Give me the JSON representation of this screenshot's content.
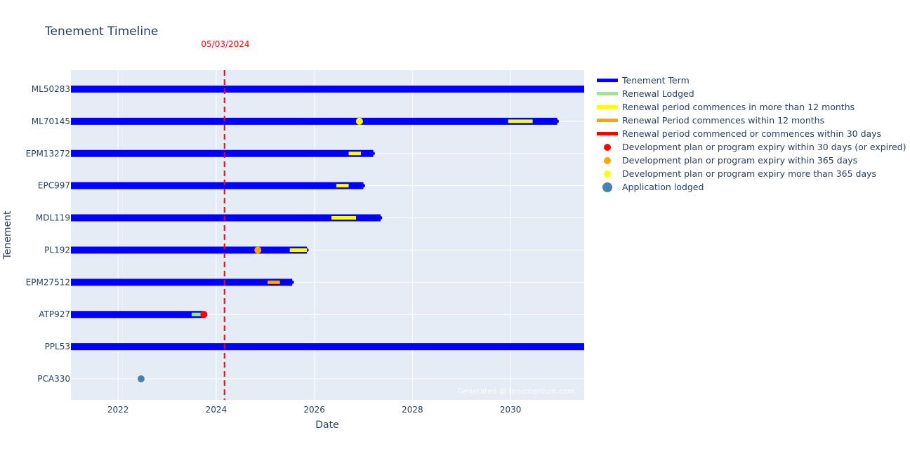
{
  "chart_data": {
    "type": "timeline",
    "title": "Tenement Timeline",
    "xlabel": "Date",
    "ylabel": "Tenement",
    "x_range": [
      2021.04,
      2031.5
    ],
    "x_ticks": [
      2022,
      2024,
      2026,
      2028,
      2030
    ],
    "x_tick_labels": [
      "2022",
      "2024",
      "2026",
      "2028",
      "2030"
    ],
    "grid": true,
    "legend_position": "right",
    "reference_line": {
      "date": "05/03/2024",
      "x": 2024.17,
      "color": "#ff0000",
      "label": "05/03/2024"
    },
    "watermark": "Generated @ tenementum.com",
    "categories": [
      "ML50283",
      "ML70145",
      "EPM13272",
      "EPC997",
      "MDL119",
      "PL192",
      "EPM27512",
      "ATP927",
      "PPL53",
      "PCA330"
    ],
    "legend": [
      {
        "name": "Tenement Term",
        "kind": "line",
        "color": "#0000ff"
      },
      {
        "name": "Renewal Lodged",
        "kind": "line",
        "color": "#90ee90"
      },
      {
        "name": "Renewal period commences in more than 12 months",
        "kind": "line",
        "color": "#ffff00"
      },
      {
        "name": "Renewal Period commences within 12 months",
        "kind": "line",
        "color": "#ffa500"
      },
      {
        "name": "Renewal period commenced or commences within 30 days",
        "kind": "line",
        "color": "#ff0000"
      },
      {
        "name": "Development plan or program expiry within 30 days (or expired)",
        "kind": "dot",
        "color": "#ff0000"
      },
      {
        "name": "Development plan or program expiry within 365 days",
        "kind": "dot",
        "color": "#ffa500"
      },
      {
        "name": "Development plan or program expiry more than 365 days",
        "kind": "dot",
        "color": "#ffff00"
      },
      {
        "name": "Application lodged",
        "kind": "bigdot",
        "color": "#4682b4"
      }
    ],
    "terms": [
      {
        "tenement": "ML50283",
        "start": 2021.0,
        "end": 2031.5,
        "open_ended": true
      },
      {
        "tenement": "ML70145",
        "start": 2021.0,
        "end": 2030.95
      },
      {
        "tenement": "EPM13272",
        "start": 2021.0,
        "end": 2027.2
      },
      {
        "tenement": "EPC997",
        "start": 2021.0,
        "end": 2027.0
      },
      {
        "tenement": "MDL119",
        "start": 2021.0,
        "end": 2027.35
      },
      {
        "tenement": "PL192",
        "start": 2021.0,
        "end": 2025.85
      },
      {
        "tenement": "EPM27512",
        "start": 2021.0,
        "end": 2025.55
      },
      {
        "tenement": "ATP927",
        "start": 2021.0,
        "end": 2023.75
      },
      {
        "tenement": "PPL53",
        "start": 2021.0,
        "end": 2031.5,
        "open_ended": true
      }
    ],
    "renewal_periods": [
      {
        "tenement": "ML70145",
        "start": 2029.95,
        "end": 2030.45,
        "status": "more than 12 months",
        "color": "#ffff00"
      },
      {
        "tenement": "EPM13272",
        "start": 2026.7,
        "end": 2026.95,
        "status": "more than 12 months",
        "color": "#ffff00"
      },
      {
        "tenement": "EPC997",
        "start": 2026.45,
        "end": 2026.7,
        "status": "more than 12 months",
        "color": "#ffff00"
      },
      {
        "tenement": "MDL119",
        "start": 2026.35,
        "end": 2026.85,
        "status": "more than 12 months",
        "color": "#ffff00"
      },
      {
        "tenement": "PL192",
        "start": 2025.5,
        "end": 2025.85,
        "status": "more than 12 months",
        "color": "#ffff00"
      },
      {
        "tenement": "EPM27512",
        "start": 2025.05,
        "end": 2025.3,
        "status": "within 12 months",
        "color": "#ffa500"
      },
      {
        "tenement": "ATP927",
        "start": 2023.5,
        "end": 2023.72,
        "status": "renewal lodged",
        "color": "#90ee90"
      }
    ],
    "dev_plan_expiry": [
      {
        "tenement": "ML70145",
        "date": 2026.92,
        "status": "more than 365 days",
        "color": "#ffff00"
      },
      {
        "tenement": "PL192",
        "date": 2024.85,
        "status": "within 365 days",
        "color": "#ffa500"
      },
      {
        "tenement": "ATP927",
        "date": 2023.75,
        "status": "within 30 days (or expired)",
        "color": "#ff0000"
      }
    ],
    "applications": [
      {
        "tenement": "PCA330",
        "date": 2022.47,
        "color": "#4682b4"
      }
    ]
  }
}
